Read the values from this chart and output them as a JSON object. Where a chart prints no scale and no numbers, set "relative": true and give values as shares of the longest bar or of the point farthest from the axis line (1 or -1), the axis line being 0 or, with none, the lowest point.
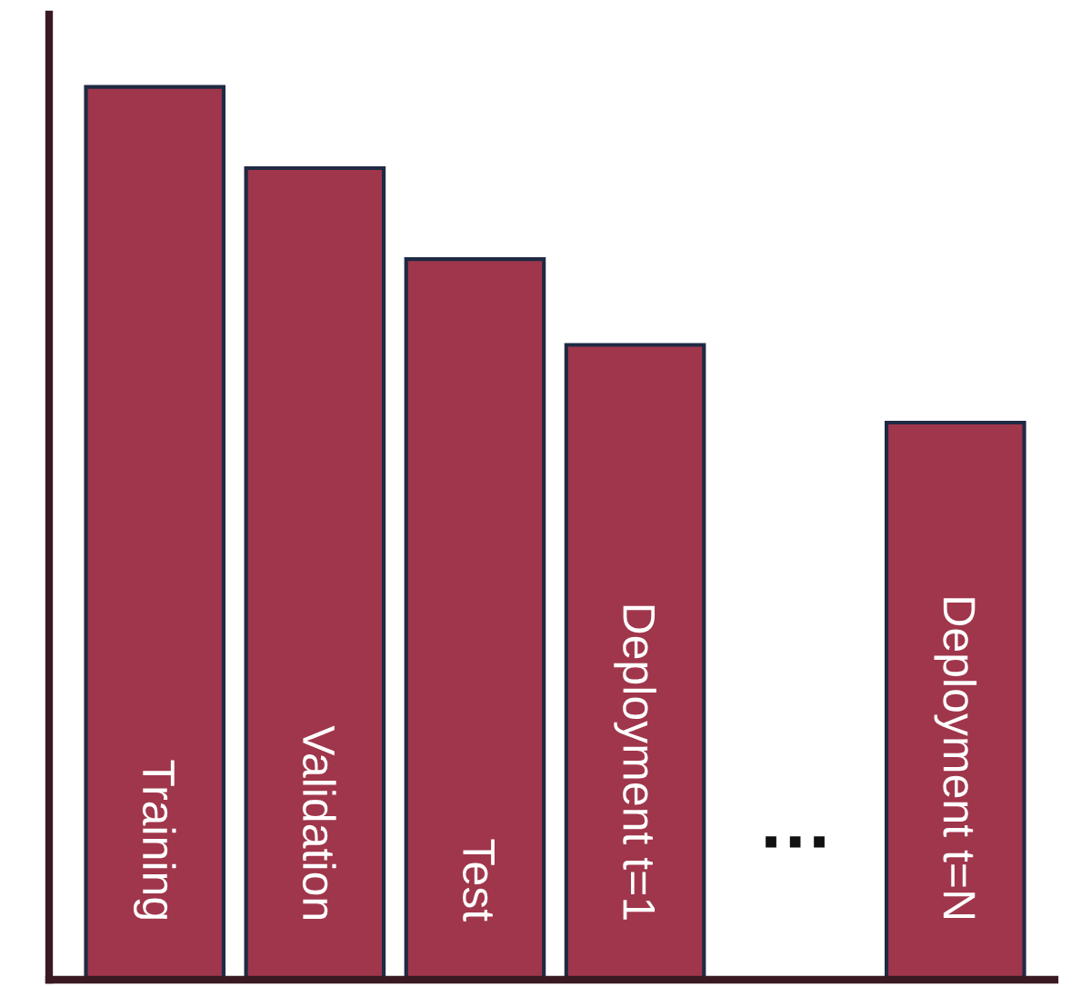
{
  "chart_data": {
    "type": "bar",
    "relative": true,
    "categories": [
      "Training",
      "Validation",
      "Test",
      "Deployment t=1",
      "…",
      "Deployment t=N"
    ],
    "values": [
      1,
      0.909,
      0.807,
      0.711,
      null,
      0.624
    ],
    "color": "#a0364b"
  }
}
